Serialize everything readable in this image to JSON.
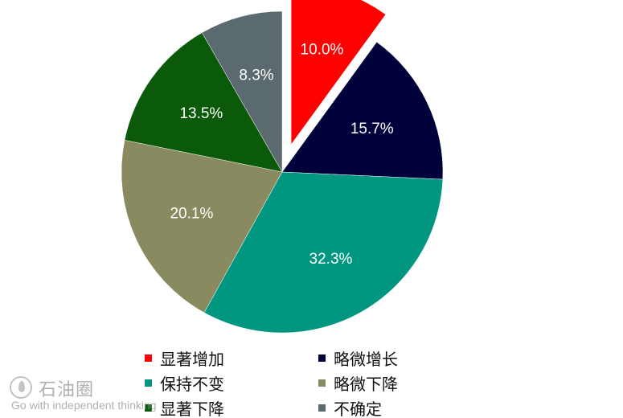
{
  "chart_data": {
    "type": "pie",
    "title": "",
    "start_angle_deg": 0,
    "direction": "clockwise",
    "exploded_slice": 0,
    "label_format": "{v}%",
    "slices": [
      {
        "label": "显著增加",
        "value": 10.0,
        "display": "10.0%",
        "color": "#ff0000"
      },
      {
        "label": "略微增长",
        "value": 15.7,
        "display": "15.7%",
        "color": "#00003a"
      },
      {
        "label": "保持不变",
        "value": 32.3,
        "display": "32.3%",
        "color": "#009680"
      },
      {
        "label": "略微下降",
        "value": 20.1,
        "display": "20.1%",
        "color": "#8a8a60"
      },
      {
        "label": "显著下降",
        "value": 13.5,
        "display": "13.5%",
        "color": "#0a5a0a"
      },
      {
        "label": "不确定",
        "value": 8.3,
        "display": "8.3%",
        "color": "#5a6a6e"
      }
    ],
    "legend": {
      "position": "bottom",
      "columns": 2,
      "items": [
        "显著增加",
        "略微增长",
        "保持不变",
        "略微下降",
        "显著下降",
        "不确定"
      ]
    }
  },
  "watermark": {
    "logo_icon": "oil-drop-icon",
    "name": "石油圈",
    "slogan": "Go with independent thinking"
  }
}
